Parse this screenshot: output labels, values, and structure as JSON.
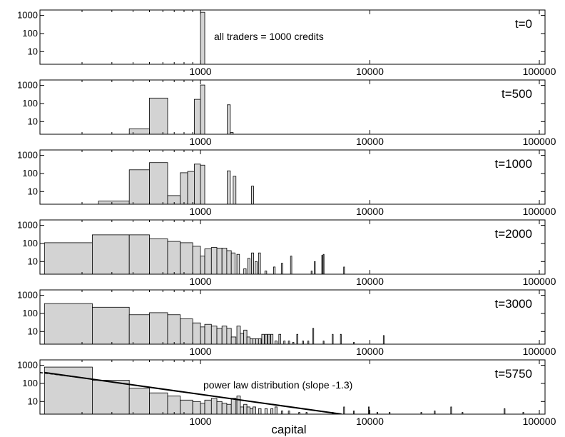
{
  "chart_data": [
    {
      "type": "bar",
      "title": "t=0",
      "annotation": "all traders = 1000 credits",
      "xscale": "log",
      "yscale": "log",
      "xlim": [
        120,
        100000
      ],
      "ylim": [
        2,
        2000
      ],
      "xticks": [
        "1000",
        "10000",
        "100000"
      ],
      "yticks": [
        "10",
        "100",
        "1000"
      ],
      "bins": [
        {
          "x0": 1000,
          "x1": 1060,
          "count": 1500
        }
      ]
    },
    {
      "type": "bar",
      "title": "t=500",
      "xscale": "log",
      "yscale": "log",
      "xlim": [
        120,
        100000
      ],
      "ylim": [
        2,
        2000
      ],
      "xticks": [
        "1000",
        "10000",
        "100000"
      ],
      "yticks": [
        "10",
        "100",
        "1000"
      ],
      "bins": [
        {
          "x0": 380,
          "x1": 500,
          "count": 4
        },
        {
          "x0": 500,
          "x1": 640,
          "count": 200
        },
        {
          "x0": 920,
          "x1": 1000,
          "count": 170
        },
        {
          "x0": 1000,
          "x1": 1060,
          "count": 1050
        },
        {
          "x0": 1440,
          "x1": 1500,
          "count": 85
        },
        {
          "x0": 1500,
          "x1": 1560,
          "count": 2.5
        }
      ]
    },
    {
      "type": "bar",
      "title": "t=1000",
      "xscale": "log",
      "yscale": "log",
      "xlim": [
        120,
        100000
      ],
      "ylim": [
        2,
        2000
      ],
      "xticks": [
        "1000",
        "10000",
        "100000"
      ],
      "yticks": [
        "10",
        "100",
        "1000"
      ],
      "bins": [
        {
          "x0": 250,
          "x1": 380,
          "count": 3
        },
        {
          "x0": 380,
          "x1": 500,
          "count": 160
        },
        {
          "x0": 500,
          "x1": 640,
          "count": 400
        },
        {
          "x0": 640,
          "x1": 760,
          "count": 6
        },
        {
          "x0": 760,
          "x1": 840,
          "count": 110
        },
        {
          "x0": 840,
          "x1": 920,
          "count": 130
        },
        {
          "x0": 920,
          "x1": 1000,
          "count": 330
        },
        {
          "x0": 1000,
          "x1": 1060,
          "count": 290
        },
        {
          "x0": 1440,
          "x1": 1500,
          "count": 140
        },
        {
          "x0": 1560,
          "x1": 1620,
          "count": 70
        },
        {
          "x0": 2000,
          "x1": 2060,
          "count": 20
        }
      ]
    },
    {
      "type": "bar",
      "title": "t=2000",
      "xscale": "log",
      "yscale": "log",
      "xlim": [
        120,
        100000
      ],
      "ylim": [
        2,
        2000
      ],
      "xticks": [
        "1000",
        "10000",
        "100000"
      ],
      "yticks": [
        "10",
        "100",
        "1000"
      ],
      "bins": [
        {
          "x0": 120,
          "x1": 230,
          "count": 110
        },
        {
          "x0": 230,
          "x1": 380,
          "count": 300
        },
        {
          "x0": 380,
          "x1": 500,
          "count": 300
        },
        {
          "x0": 500,
          "x1": 640,
          "count": 180
        },
        {
          "x0": 640,
          "x1": 760,
          "count": 130
        },
        {
          "x0": 760,
          "x1": 900,
          "count": 110
        },
        {
          "x0": 900,
          "x1": 1000,
          "count": 70
        },
        {
          "x0": 1000,
          "x1": 1060,
          "count": 20
        },
        {
          "x0": 1060,
          "x1": 1160,
          "count": 50
        },
        {
          "x0": 1160,
          "x1": 1250,
          "count": 60
        },
        {
          "x0": 1250,
          "x1": 1340,
          "count": 55
        },
        {
          "x0": 1340,
          "x1": 1430,
          "count": 55
        },
        {
          "x0": 1430,
          "x1": 1520,
          "count": 40
        },
        {
          "x0": 1520,
          "x1": 1600,
          "count": 30
        },
        {
          "x0": 1640,
          "x1": 1700,
          "count": 25
        },
        {
          "x0": 1800,
          "x1": 1860,
          "count": 4
        },
        {
          "x0": 1900,
          "x1": 1960,
          "count": 15
        },
        {
          "x0": 2000,
          "x1": 2060,
          "count": 30
        },
        {
          "x0": 2100,
          "x1": 2160,
          "count": 10
        },
        {
          "x0": 2200,
          "x1": 2260,
          "count": 30
        },
        {
          "x0": 2400,
          "x1": 2460,
          "count": 3
        },
        {
          "x0": 2700,
          "x1": 2760,
          "count": 5
        },
        {
          "x0": 3000,
          "x1": 3060,
          "count": 8
        },
        {
          "x0": 3400,
          "x1": 3460,
          "count": 20
        },
        {
          "x0": 4500,
          "x1": 4560,
          "count": 3
        },
        {
          "x0": 4700,
          "x1": 4760,
          "count": 10
        },
        {
          "x0": 5200,
          "x1": 5260,
          "count": 22
        },
        {
          "x0": 5300,
          "x1": 5360,
          "count": 25
        },
        {
          "x0": 7000,
          "x1": 7060,
          "count": 5
        }
      ]
    },
    {
      "type": "bar",
      "title": "t=3000",
      "xscale": "log",
      "yscale": "log",
      "xlim": [
        120,
        100000
      ],
      "ylim": [
        2,
        2000
      ],
      "xticks": [
        "1000",
        "10000",
        "100000"
      ],
      "yticks": [
        "10",
        "100",
        "1000"
      ],
      "bins": [
        {
          "x0": 120,
          "x1": 230,
          "count": 350
        },
        {
          "x0": 230,
          "x1": 380,
          "count": 220
        },
        {
          "x0": 380,
          "x1": 500,
          "count": 85
        },
        {
          "x0": 500,
          "x1": 640,
          "count": 110
        },
        {
          "x0": 640,
          "x1": 760,
          "count": 85
        },
        {
          "x0": 760,
          "x1": 900,
          "count": 50
        },
        {
          "x0": 900,
          "x1": 1000,
          "count": 30
        },
        {
          "x0": 1000,
          "x1": 1060,
          "count": 18
        },
        {
          "x0": 1060,
          "x1": 1160,
          "count": 25
        },
        {
          "x0": 1160,
          "x1": 1250,
          "count": 20
        },
        {
          "x0": 1250,
          "x1": 1340,
          "count": 15
        },
        {
          "x0": 1340,
          "x1": 1430,
          "count": 20
        },
        {
          "x0": 1430,
          "x1": 1520,
          "count": 15
        },
        {
          "x0": 1520,
          "x1": 1620,
          "count": 5
        },
        {
          "x0": 1640,
          "x1": 1720,
          "count": 20
        },
        {
          "x0": 1720,
          "x1": 1800,
          "count": 8
        },
        {
          "x0": 1800,
          "x1": 1880,
          "count": 12
        },
        {
          "x0": 1880,
          "x1": 1960,
          "count": 5
        },
        {
          "x0": 1960,
          "x1": 2040,
          "count": 4
        },
        {
          "x0": 2040,
          "x1": 2120,
          "count": 4
        },
        {
          "x0": 2120,
          "x1": 2200,
          "count": 4
        },
        {
          "x0": 2200,
          "x1": 2280,
          "count": 4
        },
        {
          "x0": 2300,
          "x1": 2380,
          "count": 7
        },
        {
          "x0": 2400,
          "x1": 2480,
          "count": 7
        },
        {
          "x0": 2500,
          "x1": 2580,
          "count": 7
        },
        {
          "x0": 2600,
          "x1": 2680,
          "count": 7
        },
        {
          "x0": 2750,
          "x1": 2830,
          "count": 3
        },
        {
          "x0": 2900,
          "x1": 2980,
          "count": 7
        },
        {
          "x0": 3100,
          "x1": 3160,
          "count": 3
        },
        {
          "x0": 3300,
          "x1": 3360,
          "count": 3
        },
        {
          "x0": 3500,
          "x1": 3560,
          "count": 2.5
        },
        {
          "x0": 3700,
          "x1": 3760,
          "count": 7
        },
        {
          "x0": 4000,
          "x1": 4060,
          "count": 3
        },
        {
          "x0": 4300,
          "x1": 4360,
          "count": 3
        },
        {
          "x0": 4600,
          "x1": 4660,
          "count": 15
        },
        {
          "x0": 5300,
          "x1": 5360,
          "count": 3
        },
        {
          "x0": 6000,
          "x1": 6060,
          "count": 7
        },
        {
          "x0": 6700,
          "x1": 6760,
          "count": 7
        },
        {
          "x0": 8000,
          "x1": 8060,
          "count": 2.5
        },
        {
          "x0": 12000,
          "x1": 12080,
          "count": 6
        }
      ]
    },
    {
      "type": "bar",
      "title": "t=5750",
      "annotation": "power law distribution (slope -1.3)",
      "xlabel": "capital",
      "xscale": "log",
      "yscale": "log",
      "xlim": [
        120,
        100000
      ],
      "ylim": [
        2,
        2000
      ],
      "xticks": [
        "1000",
        "10000",
        "100000"
      ],
      "yticks": [
        "10",
        "100",
        "1000"
      ],
      "fit_line": {
        "slope": -1.3,
        "x": [
          120,
          6800
        ],
        "y": [
          400,
          2
        ]
      },
      "bins": [
        {
          "x0": 120,
          "x1": 230,
          "count": 800
        },
        {
          "x0": 230,
          "x1": 380,
          "count": 150
        },
        {
          "x0": 380,
          "x1": 500,
          "count": 55
        },
        {
          "x0": 500,
          "x1": 640,
          "count": 30
        },
        {
          "x0": 640,
          "x1": 760,
          "count": 20
        },
        {
          "x0": 760,
          "x1": 900,
          "count": 12
        },
        {
          "x0": 900,
          "x1": 1000,
          "count": 10
        },
        {
          "x0": 1000,
          "x1": 1060,
          "count": 8
        },
        {
          "x0": 1060,
          "x1": 1160,
          "count": 12
        },
        {
          "x0": 1160,
          "x1": 1250,
          "count": 15
        },
        {
          "x0": 1250,
          "x1": 1340,
          "count": 10
        },
        {
          "x0": 1340,
          "x1": 1430,
          "count": 8
        },
        {
          "x0": 1430,
          "x1": 1520,
          "count": 7
        },
        {
          "x0": 1520,
          "x1": 1620,
          "count": 15
        },
        {
          "x0": 1640,
          "x1": 1720,
          "count": 20
        },
        {
          "x0": 1720,
          "x1": 1800,
          "count": 5
        },
        {
          "x0": 1800,
          "x1": 1880,
          "count": 7
        },
        {
          "x0": 1880,
          "x1": 1960,
          "count": 5
        },
        {
          "x0": 1960,
          "x1": 2040,
          "count": 4
        },
        {
          "x0": 2040,
          "x1": 2120,
          "count": 5
        },
        {
          "x0": 2200,
          "x1": 2280,
          "count": 4
        },
        {
          "x0": 2400,
          "x1": 2480,
          "count": 4
        },
        {
          "x0": 2600,
          "x1": 2680,
          "count": 4
        },
        {
          "x0": 2750,
          "x1": 2830,
          "count": 5
        },
        {
          "x0": 3000,
          "x1": 3060,
          "count": 3
        },
        {
          "x0": 3300,
          "x1": 3360,
          "count": 3
        },
        {
          "x0": 3800,
          "x1": 3860,
          "count": 2.5
        },
        {
          "x0": 4200,
          "x1": 4260,
          "count": 2.5
        },
        {
          "x0": 6000,
          "x1": 6060,
          "count": 2.5
        },
        {
          "x0": 7000,
          "x1": 7060,
          "count": 5
        },
        {
          "x0": 8000,
          "x1": 8060,
          "count": 3
        },
        {
          "x0": 9800,
          "x1": 9860,
          "count": 5
        },
        {
          "x0": 11000,
          "x1": 11060,
          "count": 2.5
        },
        {
          "x0": 13000,
          "x1": 13080,
          "count": 2.5
        },
        {
          "x0": 20000,
          "x1": 20100,
          "count": 2.5
        },
        {
          "x0": 24000,
          "x1": 24100,
          "count": 3
        },
        {
          "x0": 30000,
          "x1": 30150,
          "count": 5
        },
        {
          "x0": 35000,
          "x1": 35150,
          "count": 2.5
        },
        {
          "x0": 62000,
          "x1": 62300,
          "count": 4
        },
        {
          "x0": 80000,
          "x1": 80300,
          "count": 2.5
        }
      ]
    }
  ]
}
